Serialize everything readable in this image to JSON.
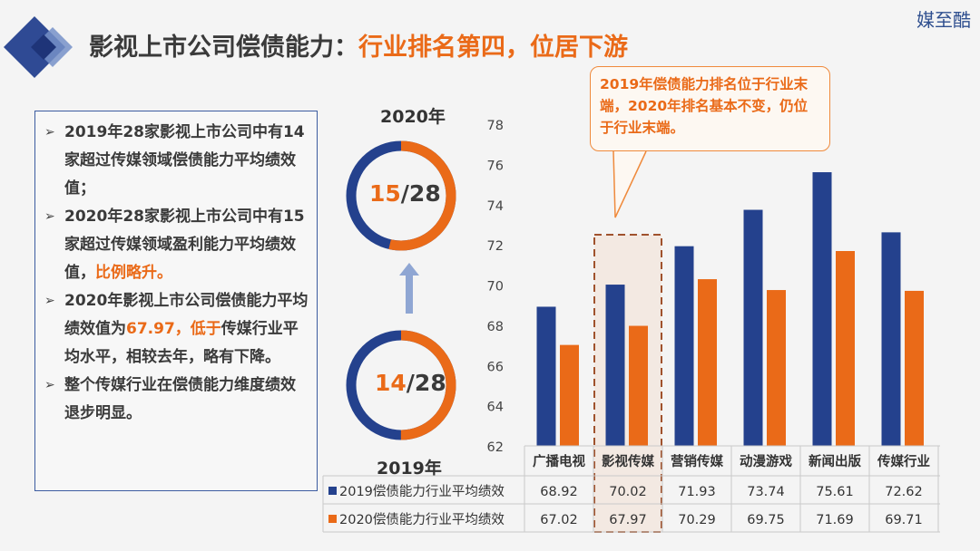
{
  "brand": "媒至酷",
  "title": {
    "part1": "影视上市公司偿债能力：",
    "part2": "行业排名第四，位居下游"
  },
  "bullets": [
    {
      "text": "2019年28家影视上市公司中有14家超过传媒领域偿债能力平均绩效值；",
      "highlight": ""
    },
    {
      "text": "2020年28家影视上市公司中有15家超过传媒领域盈利能力平均绩效值，",
      "highlight": "比例略升。"
    },
    {
      "text_pre": "2020年影视上市公司偿债能力平均绩效值为",
      "highlight": "67.97，低于",
      "text_post": "传媒行业平均水平，相较去年，略有下降。"
    },
    {
      "text": "整个传媒行业在偿债能力维度绩效退步明显。",
      "highlight": ""
    }
  ],
  "donut_2020": {
    "label": "2020年",
    "numerator": "15",
    "denominator": "/28",
    "fraction": 0.5357
  },
  "donut_2019": {
    "label": "2019年",
    "numerator": "14",
    "denominator": "/28",
    "fraction": 0.5
  },
  "callout": "2019年偿债能力排名位于行业末端，2020年排名基本不变，仍位于行业末端。",
  "colors": {
    "blue": "#24418d",
    "orange": "#ea6a18",
    "arrow": "#8fa6d3"
  },
  "chart_data": {
    "type": "bar",
    "categories": [
      "广播电视",
      "影视传媒",
      "营销传媒",
      "动漫游戏",
      "新闻出版",
      "传媒行业"
    ],
    "series": [
      {
        "name": "2019偿债能力行业平均绩效",
        "values": [
          68.92,
          70.02,
          71.93,
          73.74,
          75.61,
          72.62
        ],
        "labels": [
          "68.92",
          "70.02",
          "71.93",
          "73.74",
          "75.61",
          "72.62"
        ]
      },
      {
        "name": "2020偿债能力行业平均绩效",
        "values": [
          67.02,
          67.97,
          70.29,
          69.75,
          71.69,
          69.71
        ],
        "labels": [
          "67.02",
          "67.97",
          "70.29",
          "69.75",
          "71.69",
          "69.71"
        ]
      }
    ],
    "ylim": [
      62,
      78
    ],
    "yticks": [
      "62",
      "64",
      "66",
      "68",
      "70",
      "72",
      "74",
      "76",
      "78"
    ],
    "highlight_category": "影视传媒",
    "grid": false,
    "legend": "data-table"
  }
}
